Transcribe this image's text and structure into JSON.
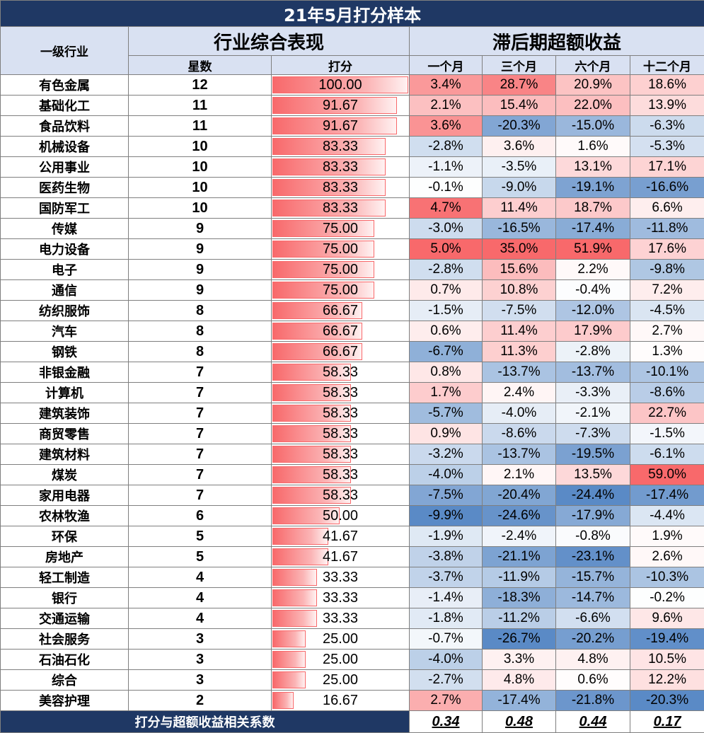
{
  "title": "21年5月打分样本",
  "headers": {
    "industry": "一级行业",
    "performance": "行业综合表现",
    "stars": "星数",
    "score": "打分",
    "excess": "滞后期超额收益",
    "periods": [
      "一个月",
      "三个月",
      "六个月",
      "十二个月"
    ]
  },
  "max_score": 100,
  "rows": [
    {
      "name": "有色金属",
      "stars": "12",
      "score": "100.00",
      "m1": "3.4%",
      "m3": "28.7%",
      "m6": "20.9%",
      "m12": "18.6%"
    },
    {
      "name": "基础化工",
      "stars": "11",
      "score": "91.67",
      "m1": "2.1%",
      "m3": "15.4%",
      "m6": "22.0%",
      "m12": "13.9%"
    },
    {
      "name": "食品饮料",
      "stars": "11",
      "score": "91.67",
      "m1": "3.6%",
      "m3": "-20.3%",
      "m6": "-15.0%",
      "m12": "-6.3%"
    },
    {
      "name": "机械设备",
      "stars": "10",
      "score": "83.33",
      "m1": "-2.8%",
      "m3": "3.6%",
      "m6": "1.6%",
      "m12": "-5.3%"
    },
    {
      "name": "公用事业",
      "stars": "10",
      "score": "83.33",
      "m1": "-1.1%",
      "m3": "-3.5%",
      "m6": "13.1%",
      "m12": "17.1%"
    },
    {
      "name": "医药生物",
      "stars": "10",
      "score": "83.33",
      "m1": "-0.1%",
      "m3": "-9.0%",
      "m6": "-19.1%",
      "m12": "-16.6%"
    },
    {
      "name": "国防军工",
      "stars": "10",
      "score": "83.33",
      "m1": "4.7%",
      "m3": "11.4%",
      "m6": "18.7%",
      "m12": "6.6%"
    },
    {
      "name": "传媒",
      "stars": "9",
      "score": "75.00",
      "m1": "-3.0%",
      "m3": "-16.5%",
      "m6": "-17.4%",
      "m12": "-11.8%"
    },
    {
      "name": "电力设备",
      "stars": "9",
      "score": "75.00",
      "m1": "5.0%",
      "m3": "35.0%",
      "m6": "51.9%",
      "m12": "17.6%"
    },
    {
      "name": "电子",
      "stars": "9",
      "score": "75.00",
      "m1": "-2.8%",
      "m3": "15.6%",
      "m6": "2.2%",
      "m12": "-9.8%"
    },
    {
      "name": "通信",
      "stars": "9",
      "score": "75.00",
      "m1": "0.7%",
      "m3": "10.8%",
      "m6": "-0.4%",
      "m12": "7.2%"
    },
    {
      "name": "纺织服饰",
      "stars": "8",
      "score": "66.67",
      "m1": "-1.5%",
      "m3": "-7.5%",
      "m6": "-12.0%",
      "m12": "-4.5%"
    },
    {
      "name": "汽车",
      "stars": "8",
      "score": "66.67",
      "m1": "0.6%",
      "m3": "11.4%",
      "m6": "17.9%",
      "m12": "2.7%"
    },
    {
      "name": "钢铁",
      "stars": "8",
      "score": "66.67",
      "m1": "-6.7%",
      "m3": "11.3%",
      "m6": "-2.8%",
      "m12": "1.3%"
    },
    {
      "name": "非银金融",
      "stars": "7",
      "score": "58.33",
      "m1": "0.8%",
      "m3": "-13.7%",
      "m6": "-13.7%",
      "m12": "-10.1%"
    },
    {
      "name": "计算机",
      "stars": "7",
      "score": "58.33",
      "m1": "1.7%",
      "m3": "2.4%",
      "m6": "-3.3%",
      "m12": "-8.6%"
    },
    {
      "name": "建筑装饰",
      "stars": "7",
      "score": "58.33",
      "m1": "-5.7%",
      "m3": "-4.0%",
      "m6": "-2.1%",
      "m12": "22.7%"
    },
    {
      "name": "商贸零售",
      "stars": "7",
      "score": "58.33",
      "m1": "0.9%",
      "m3": "-8.6%",
      "m6": "-7.3%",
      "m12": "-1.5%"
    },
    {
      "name": "建筑材料",
      "stars": "7",
      "score": "58.33",
      "m1": "-3.2%",
      "m3": "-13.7%",
      "m6": "-19.5%",
      "m12": "-6.1%"
    },
    {
      "name": "煤炭",
      "stars": "7",
      "score": "58.33",
      "m1": "-4.0%",
      "m3": "2.1%",
      "m6": "13.5%",
      "m12": "59.0%"
    },
    {
      "name": "家用电器",
      "stars": "7",
      "score": "58.33",
      "m1": "-7.5%",
      "m3": "-20.4%",
      "m6": "-24.4%",
      "m12": "-17.4%"
    },
    {
      "name": "农林牧渔",
      "stars": "6",
      "score": "50.00",
      "m1": "-9.9%",
      "m3": "-24.6%",
      "m6": "-17.9%",
      "m12": "-4.4%"
    },
    {
      "name": "环保",
      "stars": "5",
      "score": "41.67",
      "m1": "-1.9%",
      "m3": "-2.4%",
      "m6": "-0.8%",
      "m12": "1.9%"
    },
    {
      "name": "房地产",
      "stars": "5",
      "score": "41.67",
      "m1": "-3.8%",
      "m3": "-21.1%",
      "m6": "-23.1%",
      "m12": "2.6%"
    },
    {
      "name": "轻工制造",
      "stars": "4",
      "score": "33.33",
      "m1": "-3.7%",
      "m3": "-11.9%",
      "m6": "-15.7%",
      "m12": "-10.3%"
    },
    {
      "name": "银行",
      "stars": "4",
      "score": "33.33",
      "m1": "-1.4%",
      "m3": "-18.3%",
      "m6": "-14.7%",
      "m12": "-0.2%"
    },
    {
      "name": "交通运输",
      "stars": "4",
      "score": "33.33",
      "m1": "-1.8%",
      "m3": "-11.2%",
      "m6": "-6.6%",
      "m12": "9.6%"
    },
    {
      "name": "社会服务",
      "stars": "3",
      "score": "25.00",
      "m1": "-0.7%",
      "m3": "-26.7%",
      "m6": "-20.2%",
      "m12": "-19.4%"
    },
    {
      "name": "石油石化",
      "stars": "3",
      "score": "25.00",
      "m1": "-4.0%",
      "m3": "3.3%",
      "m6": "4.8%",
      "m12": "10.5%"
    },
    {
      "name": "综合",
      "stars": "3",
      "score": "25.00",
      "m1": "-2.7%",
      "m3": "4.8%",
      "m6": "0.6%",
      "m12": "12.2%"
    },
    {
      "name": "美容护理",
      "stars": "2",
      "score": "16.67",
      "m1": "2.7%",
      "m3": "-17.4%",
      "m6": "-21.8%",
      "m12": "-20.3%"
    }
  ],
  "footer": {
    "label": "打分与超额收益相关系数",
    "corr": [
      "0.34",
      "0.48",
      "0.44",
      "0.17"
    ]
  },
  "colors": {
    "title_bg": "#1f3864",
    "header_bg": "#d9e1f2",
    "positive": "#f8696b",
    "negative": "#5a8ac6",
    "neutral": "#ffffff"
  }
}
